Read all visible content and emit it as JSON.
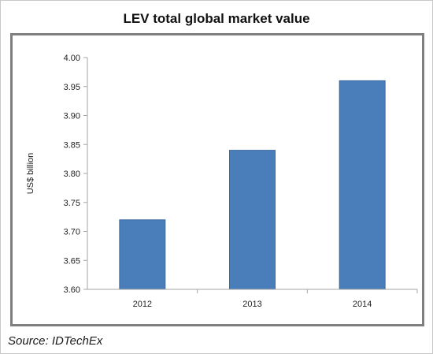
{
  "source_note": "Source: IDTechEx",
  "chart_data": {
    "type": "bar",
    "title": "LEV total global market value",
    "ylabel": "US$ billion",
    "xlabel": "",
    "categories": [
      "2012",
      "2013",
      "2014"
    ],
    "values": [
      3.72,
      3.84,
      3.96
    ],
    "ylim": [
      3.6,
      4.0
    ],
    "yticks": [
      "3.60",
      "3.65",
      "3.70",
      "3.75",
      "3.80",
      "3.85",
      "3.90",
      "3.95",
      "4.00"
    ],
    "grid": false,
    "legend": "none",
    "colors": {
      "bar": "#4a7ebb",
      "bar_edge": "#3b6aa3",
      "axis": "#a6a6a6"
    }
  }
}
